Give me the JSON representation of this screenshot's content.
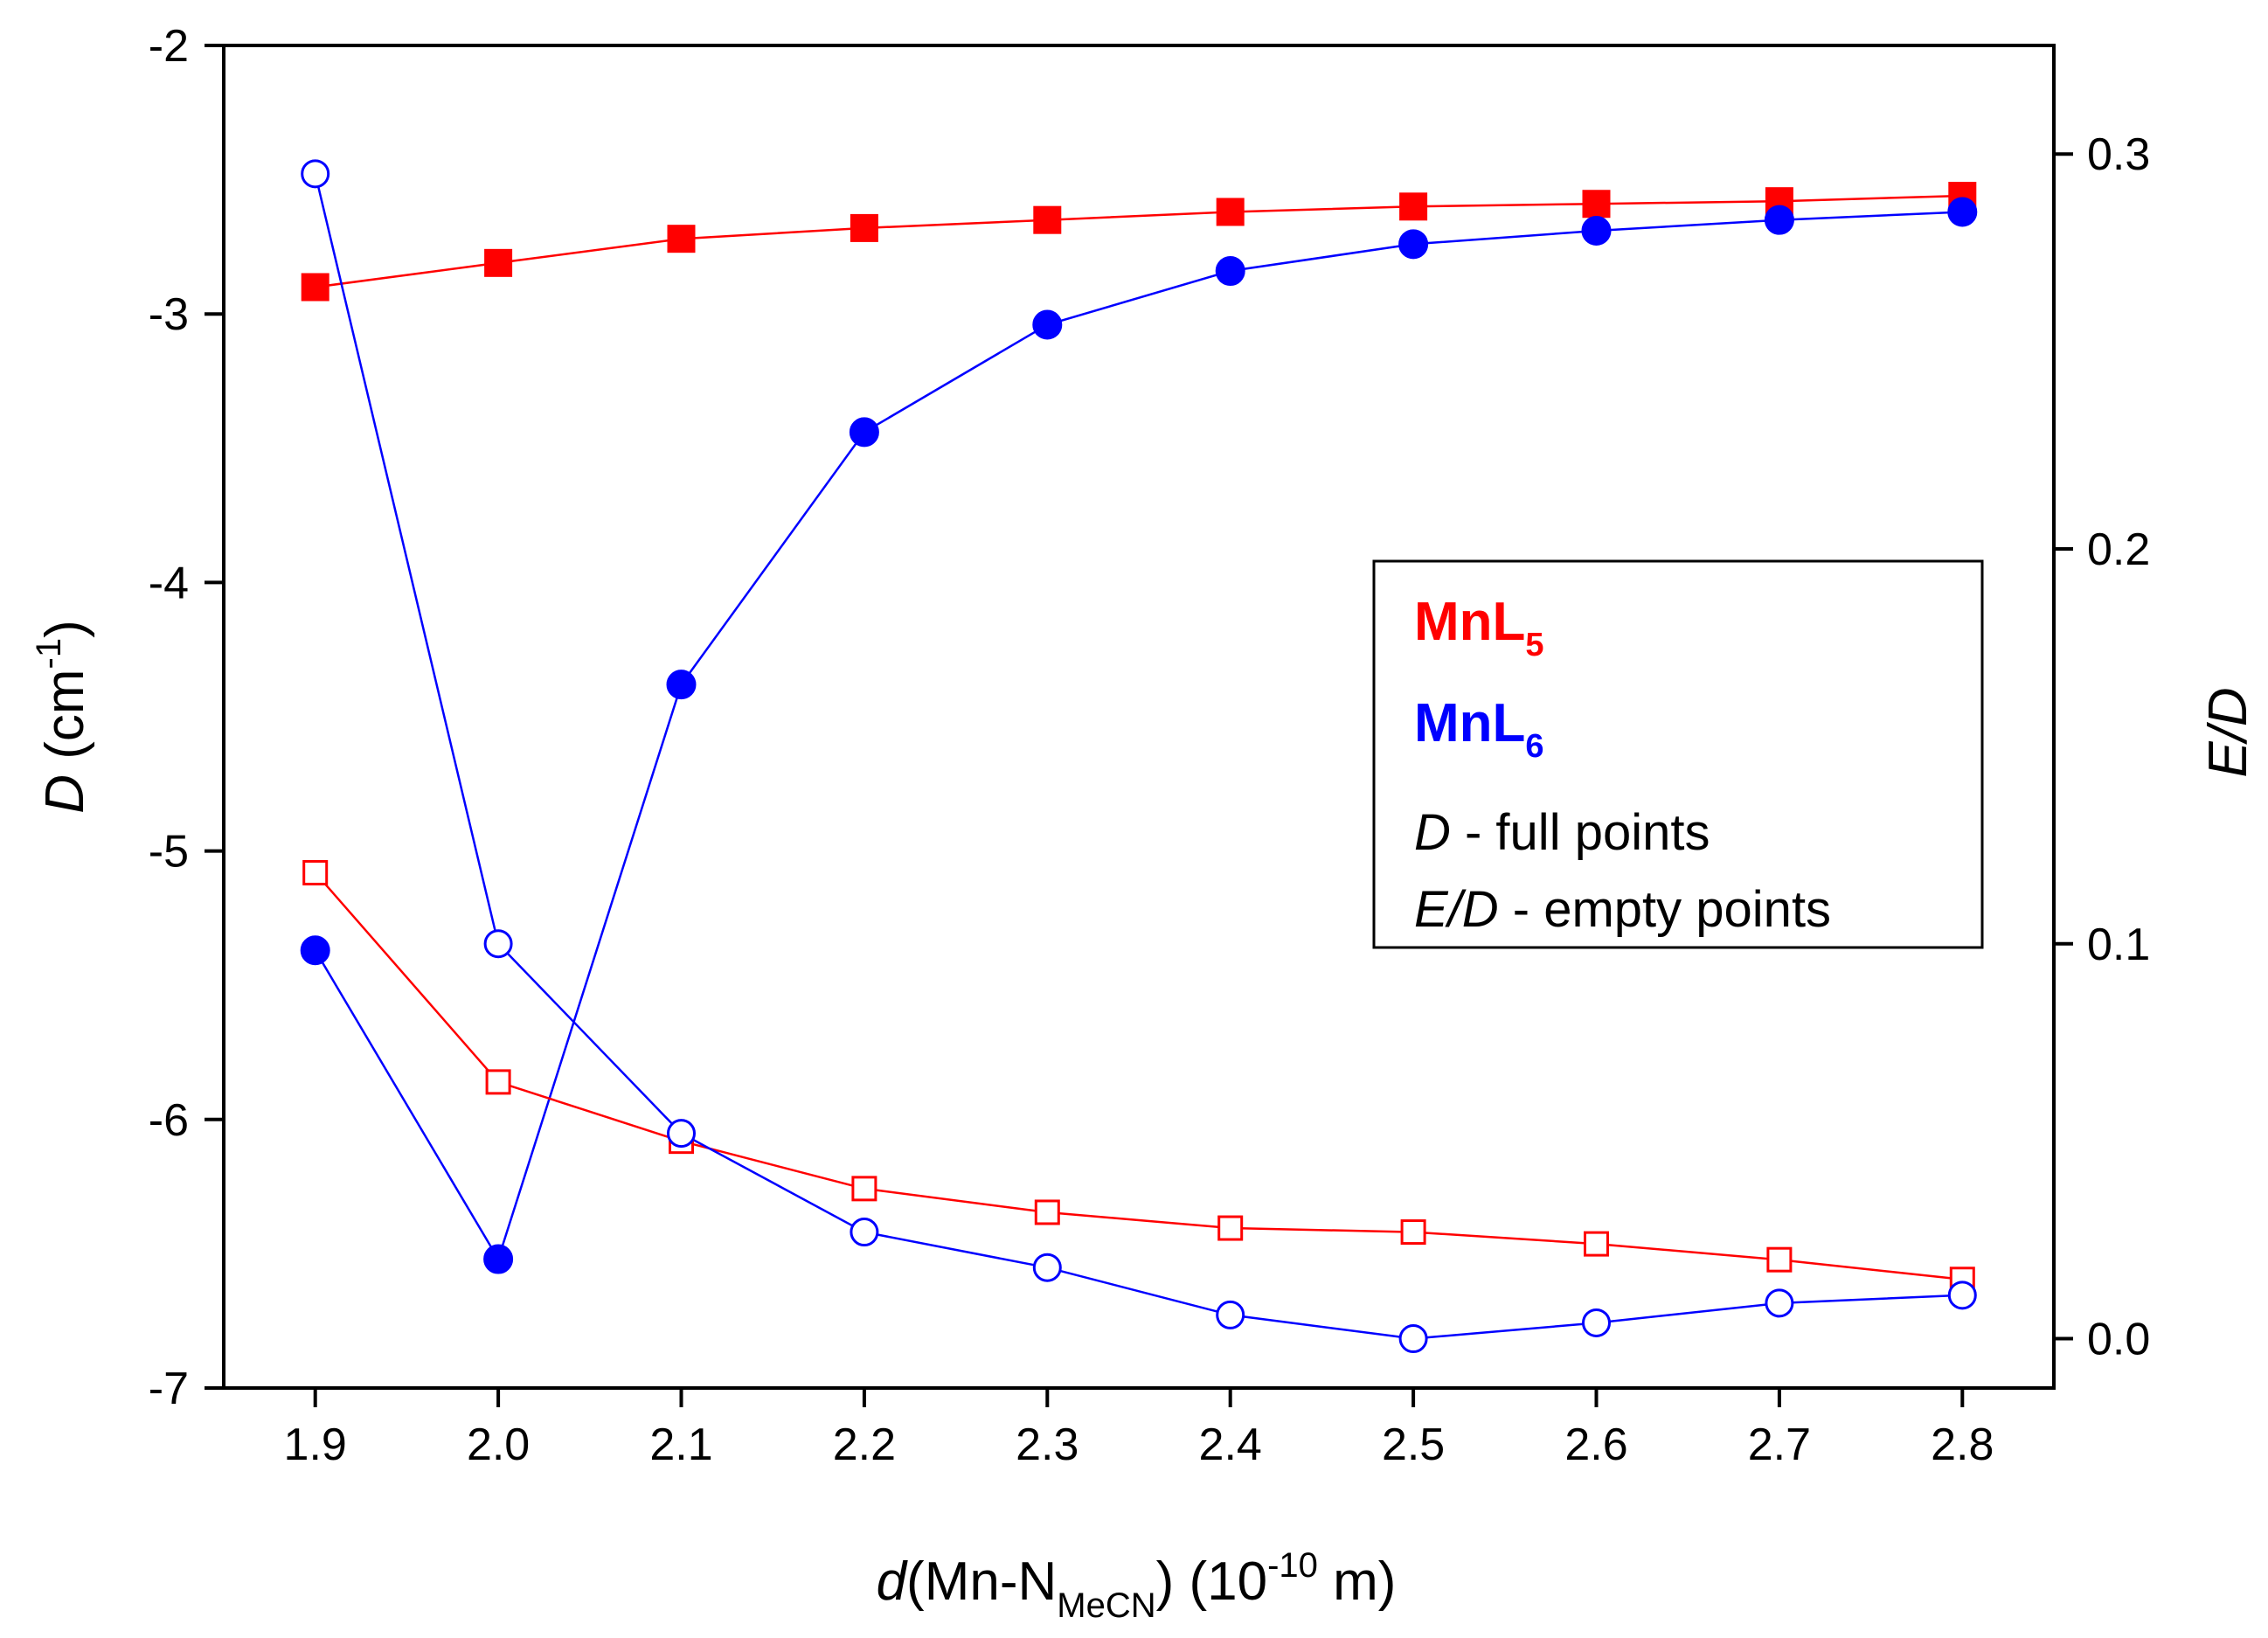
{
  "chart_data": {
    "type": "line",
    "x": [
      1.9,
      2.0,
      2.1,
      2.2,
      2.3,
      2.4,
      2.5,
      2.6,
      2.7,
      2.8
    ],
    "x_tick_labels": [
      "1.9",
      "2.0",
      "2.1",
      "2.2",
      "2.3",
      "2.4",
      "2.5",
      "2.6",
      "2.7",
      "2.8"
    ],
    "xlim": [
      1.85,
      2.85
    ],
    "xlabel": {
      "italic": "d",
      "main": "(Mn-N",
      "sub": "MeCN",
      "after": ") (10",
      "sup": "-10",
      "end": " m)"
    },
    "y_left": {
      "lim": [
        -7,
        -2
      ],
      "ticks": [
        -7,
        -6,
        -5,
        -4,
        -3,
        -2
      ],
      "tick_labels": [
        "-7",
        "-6",
        "-5",
        "-4",
        "-3",
        "-2"
      ],
      "label": {
        "italic": "D",
        "main": " (cm",
        "sup": "-1",
        "end": ")"
      }
    },
    "y_right": {
      "lim": [
        -0.0125,
        0.3275
      ],
      "ticks": [
        0.0,
        0.1,
        0.2,
        0.3
      ],
      "tick_labels": [
        "0.0",
        "0.1",
        "0.2",
        "0.3"
      ],
      "label": "E/D"
    },
    "series": [
      {
        "name": "MnL5 D",
        "axis": "left",
        "color": "#ff0000",
        "marker": "square",
        "filled": true,
        "values": [
          -2.9,
          -2.81,
          -2.72,
          -2.68,
          -2.65,
          -2.62,
          -2.6,
          -2.59,
          -2.58,
          -2.56
        ]
      },
      {
        "name": "MnL6 D",
        "axis": "left",
        "color": "#0000ff",
        "marker": "circle",
        "filled": true,
        "values": [
          -5.37,
          -6.52,
          -4.38,
          -3.44,
          -3.04,
          -2.84,
          -2.74,
          -2.69,
          -2.65,
          -2.62
        ]
      },
      {
        "name": "MnL5 E/D",
        "axis": "right",
        "color": "#ff0000",
        "marker": "square",
        "filled": false,
        "values": [
          0.118,
          0.065,
          0.05,
          0.038,
          0.032,
          0.028,
          0.027,
          0.024,
          0.02,
          0.015
        ]
      },
      {
        "name": "MnL6 E/D",
        "axis": "right",
        "color": "#0000ff",
        "marker": "circle",
        "filled": false,
        "values": [
          0.295,
          0.1,
          0.052,
          0.027,
          0.018,
          0.006,
          0.0,
          0.004,
          0.009,
          0.011
        ]
      }
    ],
    "legend": {
      "position": "right-middle",
      "mnl5": {
        "main": "MnL",
        "sub": "5",
        "color": "#ff0000"
      },
      "mnl6": {
        "main": "MnL",
        "sub": "6",
        "color": "#0000ff"
      },
      "line3": {
        "italic": "D",
        "rest": " - full points"
      },
      "line4": {
        "italic": "E/D",
        "rest": " - empty points"
      }
    }
  }
}
